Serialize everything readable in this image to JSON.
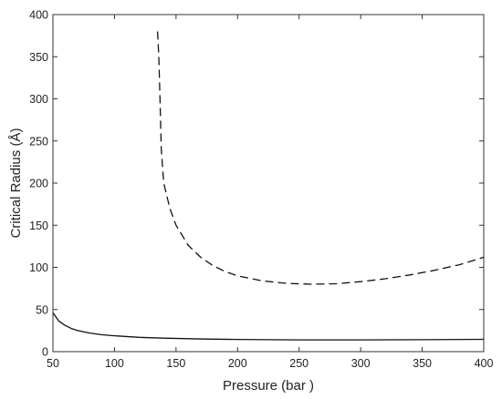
{
  "chart_data": {
    "type": "line",
    "xlabel": "Pressure (bar )",
    "ylabel": "Critical Radius (Å)",
    "xlim": [
      50,
      400
    ],
    "ylim": [
      0,
      400
    ],
    "xticks": [
      50,
      100,
      150,
      200,
      250,
      300,
      350,
      400
    ],
    "yticks": [
      0,
      50,
      100,
      150,
      200,
      250,
      300,
      350,
      400
    ],
    "xtick_labels": [
      "50",
      "100",
      "150",
      "200",
      "250",
      "300",
      "350",
      "400"
    ],
    "ytick_labels": [
      "0",
      "50",
      "100",
      "150",
      "200",
      "250",
      "300",
      "350",
      "400"
    ],
    "grid": false,
    "series": [
      {
        "style": "solid",
        "color": "#111111",
        "x": [
          50,
          52,
          55,
          60,
          65,
          70,
          80,
          90,
          100,
          120,
          140,
          160,
          180,
          200,
          250,
          300,
          350,
          400
        ],
        "y": [
          46,
          42,
          36,
          31,
          27.5,
          25,
          22,
          20,
          18.8,
          17,
          16,
          15.3,
          14.8,
          14.5,
          14,
          14,
          14.2,
          14.6
        ]
      },
      {
        "style": "dashed",
        "color": "#111111",
        "x": [
          135,
          136,
          137,
          138,
          140,
          145,
          150,
          160,
          170,
          180,
          190,
          200,
          220,
          240,
          260,
          280,
          300,
          320,
          340,
          360,
          380,
          400
        ],
        "y": [
          380,
          350,
          300,
          240,
          200,
          170,
          150,
          126,
          112,
          102,
          95,
          90,
          84,
          81,
          80,
          80.5,
          83,
          86.5,
          91,
          96.5,
          103,
          112
        ]
      }
    ]
  }
}
